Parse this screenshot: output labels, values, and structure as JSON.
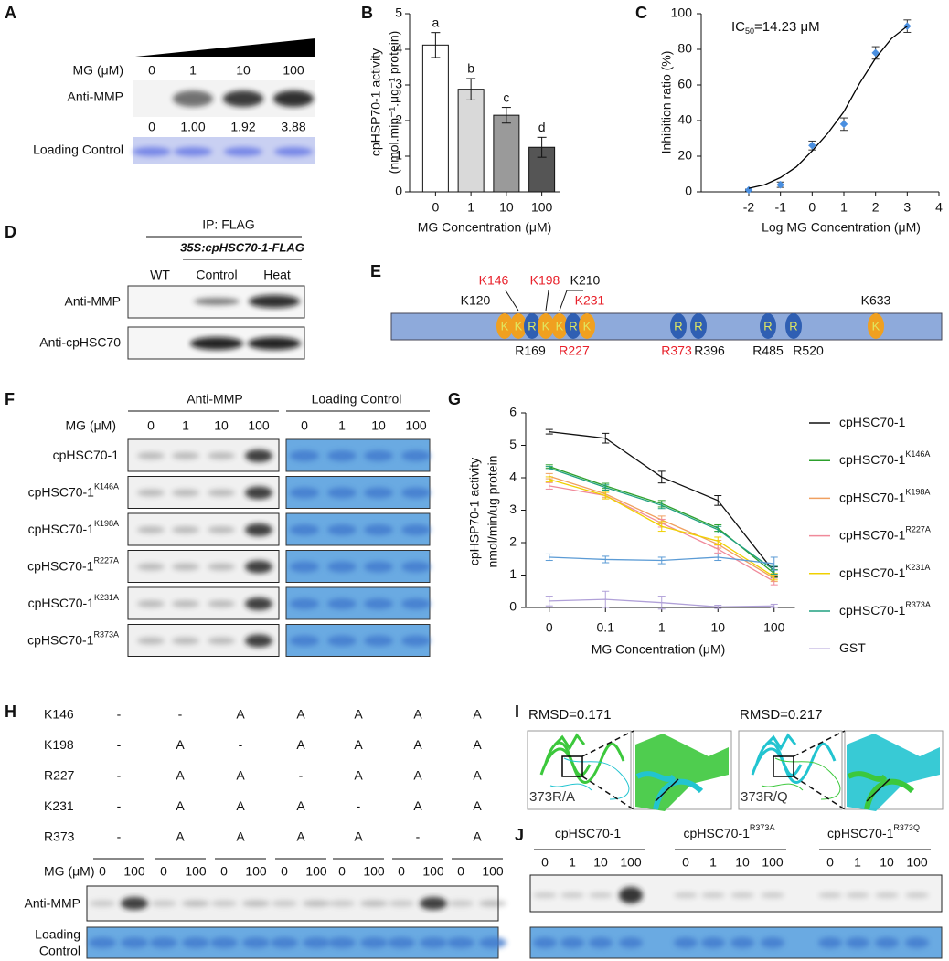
{
  "panel_labels": [
    "A",
    "B",
    "C",
    "D",
    "E",
    "F",
    "G",
    "H",
    "I",
    "J"
  ],
  "panel_a": {
    "mg_label": "MG (μM)",
    "concentrations": [
      "0",
      "1",
      "10",
      "100"
    ],
    "blots": [
      "Anti-MMP",
      "Loading Control"
    ],
    "intensities": [
      "0",
      "1.00",
      "1.92",
      "3.88"
    ]
  },
  "panel_d": {
    "ip": "IP: FLAG",
    "construct": "35S:cpHSC70-1-FLAG",
    "lanes": [
      "WT",
      "Control",
      "Heat"
    ],
    "blots": [
      "Anti-MMP",
      "Anti-cpHSC70"
    ]
  },
  "panel_e": {
    "highlight_color": "#e8202a",
    "residues": [
      {
        "label": "K120",
        "letter": "K",
        "highlight": false
      },
      {
        "label": "K146",
        "letter": "K",
        "highlight": true
      },
      {
        "label": "R169",
        "letter": "R",
        "highlight": false
      },
      {
        "label": "K198",
        "letter": "K",
        "highlight": true
      },
      {
        "label": "K210",
        "letter": "K",
        "highlight": false
      },
      {
        "label": "R227",
        "letter": "R",
        "highlight": true
      },
      {
        "label": "K231",
        "letter": "K",
        "highlight": true
      },
      {
        "label": "R373",
        "letter": "R",
        "highlight": true
      },
      {
        "label": "R396",
        "letter": "R",
        "highlight": false
      },
      {
        "label": "R485",
        "letter": "R",
        "highlight": false
      },
      {
        "label": "R520",
        "letter": "R",
        "highlight": false
      },
      {
        "label": "K633",
        "letter": "K",
        "highlight": false
      }
    ]
  },
  "panel_f": {
    "headers": [
      "Anti-MMP",
      "Loading Control"
    ],
    "mg_label": "MG (μM)",
    "concentrations": [
      "0",
      "1",
      "10",
      "100"
    ],
    "rows": [
      {
        "name": "cpHSC70-1"
      },
      {
        "name": "cpHSC70-1",
        "sup": "K146A"
      },
      {
        "name": "cpHSC70-1",
        "sup": "K198A"
      },
      {
        "name": "cpHSC70-1",
        "sup": "R227A"
      },
      {
        "name": "cpHSC70-1",
        "sup": "K231A"
      },
      {
        "name": "cpHSC70-1",
        "sup": "R373A"
      }
    ]
  },
  "panel_h": {
    "rows": [
      {
        "name": "K146",
        "cells": [
          "-",
          "-",
          "A",
          "A",
          "A",
          "A",
          "A"
        ]
      },
      {
        "name": "K198",
        "cells": [
          "-",
          "A",
          "-",
          "A",
          "A",
          "A",
          "A"
        ]
      },
      {
        "name": "R227",
        "cells": [
          "-",
          "A",
          "A",
          "-",
          "A",
          "A",
          "A"
        ]
      },
      {
        "name": "K231",
        "cells": [
          "-",
          "A",
          "A",
          "A",
          "-",
          "A",
          "A"
        ]
      },
      {
        "name": "R373",
        "cells": [
          "-",
          "A",
          "A",
          "A",
          "A",
          "-",
          "A"
        ]
      }
    ],
    "mg_label": "MG (μM)",
    "concentrations": [
      "0",
      "100"
    ],
    "blots": [
      [
        "Anti-MMP"
      ],
      [
        "Loading",
        "Control"
      ]
    ]
  },
  "panel_i": {
    "models": [
      {
        "rmsd": "RMSD=0.171",
        "mutation": "373R/A"
      },
      {
        "rmsd": "RMSD=0.217",
        "mutation": "373R/Q"
      }
    ]
  },
  "panel_j": {
    "groups": [
      {
        "name": "cpHSC70-1"
      },
      {
        "name": "cpHSC70-1",
        "sup": "R373A"
      },
      {
        "name": "cpHSC70-1",
        "sup": "R373Q"
      }
    ],
    "concentrations": [
      "0",
      "1",
      "10",
      "100"
    ]
  },
  "chart_data": [
    {
      "type": "bar",
      "ylabel": [
        "cpHSP70-1 activity",
        "(nmol.min⁻¹.μg⁻¹ protein)"
      ],
      "xlabel": "MG Concentration (μM)",
      "categories": [
        "0",
        "1",
        "10",
        "100"
      ],
      "values": [
        4.12,
        2.88,
        2.15,
        1.25
      ],
      "errors": [
        0.35,
        0.3,
        0.22,
        0.28
      ],
      "annotations": [
        "a",
        "b",
        "c",
        "d"
      ],
      "colors": [
        "#ffffff",
        "#d9d9d9",
        "#9a9a9a",
        "#555555"
      ],
      "ylim": [
        0,
        5
      ],
      "yticks": [
        0,
        1,
        2,
        3,
        4,
        5
      ]
    },
    {
      "type": "scatter",
      "ylabel": "Inhibition ratio (%)",
      "xlabel": "Log MG Concentration (μM)",
      "annotation": [
        "IC",
        "50",
        "=14.23 μM"
      ],
      "series": [
        {
          "style": "markers",
          "color": "#4a8fe0",
          "x": [
            -2,
            -1,
            0,
            1,
            2,
            3
          ],
          "values": [
            1,
            4,
            26,
            38,
            78,
            93
          ],
          "errors": [
            0.5,
            1.5,
            2.5,
            3.5,
            3.5,
            3.5
          ]
        },
        {
          "style": "line",
          "color": "#000000",
          "x": [
            -2,
            -1.5,
            -1,
            -0.5,
            0,
            0.5,
            1,
            1.5,
            2,
            2.5,
            3
          ],
          "values": [
            2,
            4,
            8,
            14,
            23,
            33,
            45,
            61,
            75,
            86,
            93
          ]
        }
      ],
      "xlim": [
        -3.5,
        4
      ],
      "ylim": [
        0,
        100
      ],
      "xticks": [
        -2,
        -1,
        0,
        1,
        2,
        3,
        4
      ],
      "yticks": [
        0,
        20,
        40,
        60,
        80,
        100
      ]
    },
    {
      "type": "line",
      "ylabel": [
        "cpHSP70-1 activity",
        "nmol/min/ug protein"
      ],
      "xlabel": "MG Concentration (μM)",
      "categories": [
        "0",
        "0.1",
        "1",
        "10",
        "100"
      ],
      "ylim": [
        0,
        6
      ],
      "yticks": [
        0,
        1,
        2,
        3,
        4,
        5,
        6
      ],
      "legend": "right",
      "series": [
        {
          "name": "cpHSC70-1",
          "color": "#111111",
          "values": [
            5.42,
            5.22,
            4.02,
            3.3,
            1.1
          ],
          "errors": [
            0.07,
            0.15,
            0.18,
            0.15,
            0.15
          ]
        },
        {
          "name": "cpHSC70-1",
          "sup": "K146A",
          "color": "#2ca02c",
          "values": [
            4.35,
            3.75,
            3.2,
            2.45,
            1.05
          ],
          "errors": [
            0.05,
            0.08,
            0.1,
            0.1,
            0.12
          ]
        },
        {
          "name": "cpHSC70-1",
          "sup": "K198A",
          "color": "#f0a060",
          "values": [
            4.05,
            3.5,
            2.7,
            1.95,
            0.9
          ],
          "errors": [
            0.08,
            0.1,
            0.12,
            0.12,
            0.1
          ]
        },
        {
          "name": "cpHSC70-1",
          "sup": "R227A",
          "color": "#f08a9a",
          "values": [
            3.75,
            3.45,
            2.6,
            1.8,
            0.8
          ],
          "errors": [
            0.1,
            0.1,
            0.12,
            0.12,
            0.1
          ]
        },
        {
          "name": "cpHSC70-1",
          "sup": "K231A",
          "color": "#f0d000",
          "values": [
            3.95,
            3.45,
            2.5,
            2.05,
            0.95
          ],
          "errors": [
            0.08,
            0.1,
            0.15,
            0.12,
            0.1
          ]
        },
        {
          "name": "cpHSC70-1",
          "sup": "R373A",
          "color": "#20a080",
          "values": [
            4.3,
            3.7,
            3.15,
            2.4,
            1.15
          ],
          "errors": [
            0.05,
            0.08,
            0.1,
            0.1,
            0.12
          ]
        },
        {
          "color": "#5b9bd5",
          "values": [
            1.55,
            1.48,
            1.45,
            1.55,
            1.35
          ],
          "errors": [
            0.1,
            0.1,
            0.1,
            0.1,
            0.2
          ]
        },
        {
          "name": "GST",
          "color": "#b0a0d8",
          "values": [
            0.2,
            0.25,
            0.15,
            0.02,
            0.05
          ],
          "errors": [
            0.15,
            0.25,
            0.2,
            0.05,
            0.05
          ]
        }
      ]
    }
  ]
}
